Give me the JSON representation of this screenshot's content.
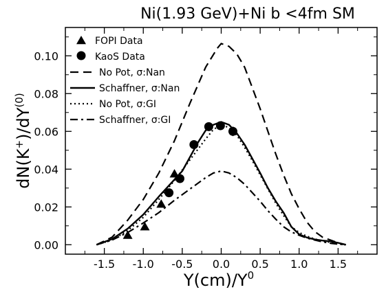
{
  "chart_data": {
    "type": "line",
    "title": "Ni(1.93 GeV)+Ni b <4fm SM",
    "xlabel": {
      "main": "Y(cm)/Y",
      "sup": "0"
    },
    "ylabel": {
      "pre": "dN(K",
      "sup1": "+",
      "mid": ")/dY",
      "sup2": "(0)"
    },
    "xlim": [
      -2.0,
      2.0
    ],
    "ylim": [
      -0.005,
      0.115
    ],
    "xticks": [
      {
        "value": -1.5,
        "label": "-1.5"
      },
      {
        "value": -1.0,
        "label": "-1.0"
      },
      {
        "value": -0.5,
        "label": "-0.5"
      },
      {
        "value": 0.0,
        "label": "0.0"
      },
      {
        "value": 0.5,
        "label": "0.5"
      },
      {
        "value": 1.0,
        "label": "1.0"
      },
      {
        "value": 1.5,
        "label": "1.5"
      }
    ],
    "yticks": [
      {
        "value": 0.0,
        "label": "0.00"
      },
      {
        "value": 0.02,
        "label": "0.02"
      },
      {
        "value": 0.04,
        "label": "0.04"
      },
      {
        "value": 0.06,
        "label": "0.06"
      },
      {
        "value": 0.08,
        "label": "0.08"
      },
      {
        "value": 0.1,
        "label": "0.10"
      }
    ],
    "grid": false,
    "legend_position": "top-left",
    "series": [
      {
        "name": "FOPI Data",
        "kind": "marker",
        "marker": "triangle",
        "points": [
          [
            -1.2,
            0.005
          ],
          [
            -0.98,
            0.0095
          ],
          [
            -0.77,
            0.0215
          ],
          [
            -0.6,
            0.0375
          ]
        ]
      },
      {
        "name": "KaoS Data",
        "kind": "marker",
        "marker": "circle",
        "points": [
          [
            -0.67,
            0.0275
          ],
          [
            -0.53,
            0.035
          ],
          [
            -0.35,
            0.053
          ],
          [
            -0.16,
            0.0625
          ],
          [
            -0.01,
            0.063
          ],
          [
            0.15,
            0.06
          ]
        ]
      },
      {
        "name": "No Pot, σ:Nan",
        "kind": "line",
        "dash": "dash",
        "points": [
          [
            -1.6,
            0.0
          ],
          [
            -1.4,
            0.004
          ],
          [
            -1.2,
            0.013
          ],
          [
            -1.0,
            0.024
          ],
          [
            -0.8,
            0.038
          ],
          [
            -0.6,
            0.055
          ],
          [
            -0.4,
            0.075
          ],
          [
            -0.2,
            0.094
          ],
          [
            -0.05,
            0.104
          ],
          [
            0.0,
            0.1065
          ],
          [
            0.1,
            0.105
          ],
          [
            0.2,
            0.101
          ],
          [
            0.3,
            0.094
          ],
          [
            0.4,
            0.083
          ],
          [
            0.5,
            0.072
          ],
          [
            0.6,
            0.06
          ],
          [
            0.7,
            0.048
          ],
          [
            0.8,
            0.037
          ],
          [
            0.9,
            0.027
          ],
          [
            1.0,
            0.019
          ],
          [
            1.1,
            0.012
          ],
          [
            1.2,
            0.007
          ],
          [
            1.3,
            0.004
          ],
          [
            1.4,
            0.0025
          ],
          [
            1.5,
            0.001
          ],
          [
            1.6,
            0.0
          ]
        ]
      },
      {
        "name": "Schaffner, σ:Nan",
        "kind": "line",
        "dash": "solid",
        "points": [
          [
            -1.6,
            0.0
          ],
          [
            -1.4,
            0.003
          ],
          [
            -1.2,
            0.0085
          ],
          [
            -1.0,
            0.016
          ],
          [
            -0.8,
            0.0255
          ],
          [
            -0.6,
            0.0345
          ],
          [
            -0.5,
            0.039
          ],
          [
            -0.4,
            0.0465
          ],
          [
            -0.3,
            0.054
          ],
          [
            -0.2,
            0.0605
          ],
          [
            -0.1,
            0.0635
          ],
          [
            0.0,
            0.065
          ],
          [
            0.1,
            0.0635
          ],
          [
            0.2,
            0.059
          ],
          [
            0.3,
            0.053
          ],
          [
            0.4,
            0.0455
          ],
          [
            0.5,
            0.038
          ],
          [
            0.6,
            0.03
          ],
          [
            0.7,
            0.023
          ],
          [
            0.8,
            0.017
          ],
          [
            0.9,
            0.0095
          ],
          [
            1.0,
            0.0055
          ],
          [
            1.1,
            0.0038
          ],
          [
            1.2,
            0.0028
          ],
          [
            1.3,
            0.0022
          ],
          [
            1.4,
            0.0018
          ],
          [
            1.5,
            0.001
          ],
          [
            1.6,
            0.0
          ]
        ]
      },
      {
        "name": "No Pot, σ:GI",
        "kind": "line",
        "dash": "dot",
        "points": [
          [
            -1.6,
            0.0
          ],
          [
            -1.4,
            0.0025
          ],
          [
            -1.2,
            0.0075
          ],
          [
            -1.0,
            0.0145
          ],
          [
            -0.8,
            0.024
          ],
          [
            -0.6,
            0.034
          ],
          [
            -0.4,
            0.045
          ],
          [
            -0.2,
            0.056
          ],
          [
            -0.1,
            0.061
          ],
          [
            0.0,
            0.0635
          ],
          [
            0.1,
            0.062
          ],
          [
            0.2,
            0.058
          ],
          [
            0.3,
            0.0515
          ],
          [
            0.4,
            0.0445
          ],
          [
            0.5,
            0.037
          ],
          [
            0.6,
            0.0295
          ],
          [
            0.7,
            0.022
          ],
          [
            0.8,
            0.0155
          ],
          [
            0.9,
            0.0095
          ],
          [
            1.0,
            0.0065
          ],
          [
            1.1,
            0.0045
          ],
          [
            1.2,
            0.003
          ],
          [
            1.3,
            0.002
          ],
          [
            1.4,
            0.0012
          ],
          [
            1.5,
            0.0005
          ],
          [
            1.6,
            0.0
          ]
        ]
      },
      {
        "name": "Schaffner, σ:GI",
        "kind": "line",
        "dash": "dashdot",
        "points": [
          [
            -1.6,
            0.0
          ],
          [
            -1.4,
            0.0025
          ],
          [
            -1.2,
            0.0065
          ],
          [
            -1.0,
            0.0115
          ],
          [
            -0.8,
            0.017
          ],
          [
            -0.6,
            0.0235
          ],
          [
            -0.4,
            0.0295
          ],
          [
            -0.2,
            0.0355
          ],
          [
            -0.1,
            0.038
          ],
          [
            0.0,
            0.039
          ],
          [
            0.1,
            0.038
          ],
          [
            0.2,
            0.0355
          ],
          [
            0.3,
            0.032
          ],
          [
            0.4,
            0.0275
          ],
          [
            0.5,
            0.023
          ],
          [
            0.6,
            0.018
          ],
          [
            0.7,
            0.0135
          ],
          [
            0.8,
            0.0095
          ],
          [
            0.9,
            0.0068
          ],
          [
            1.0,
            0.005
          ],
          [
            1.1,
            0.0035
          ],
          [
            1.2,
            0.0025
          ],
          [
            1.3,
            0.0015
          ],
          [
            1.4,
            0.0008
          ],
          [
            1.5,
            0.0003
          ],
          [
            1.6,
            0.0
          ]
        ]
      }
    ],
    "error_bars": [
      {
        "x": -0.01,
        "y": 0.063,
        "ylow": 0.061,
        "yhigh": 0.065
      },
      {
        "x": 0.15,
        "y": 0.06,
        "ylow": 0.0575,
        "yhigh": 0.0625
      }
    ]
  }
}
